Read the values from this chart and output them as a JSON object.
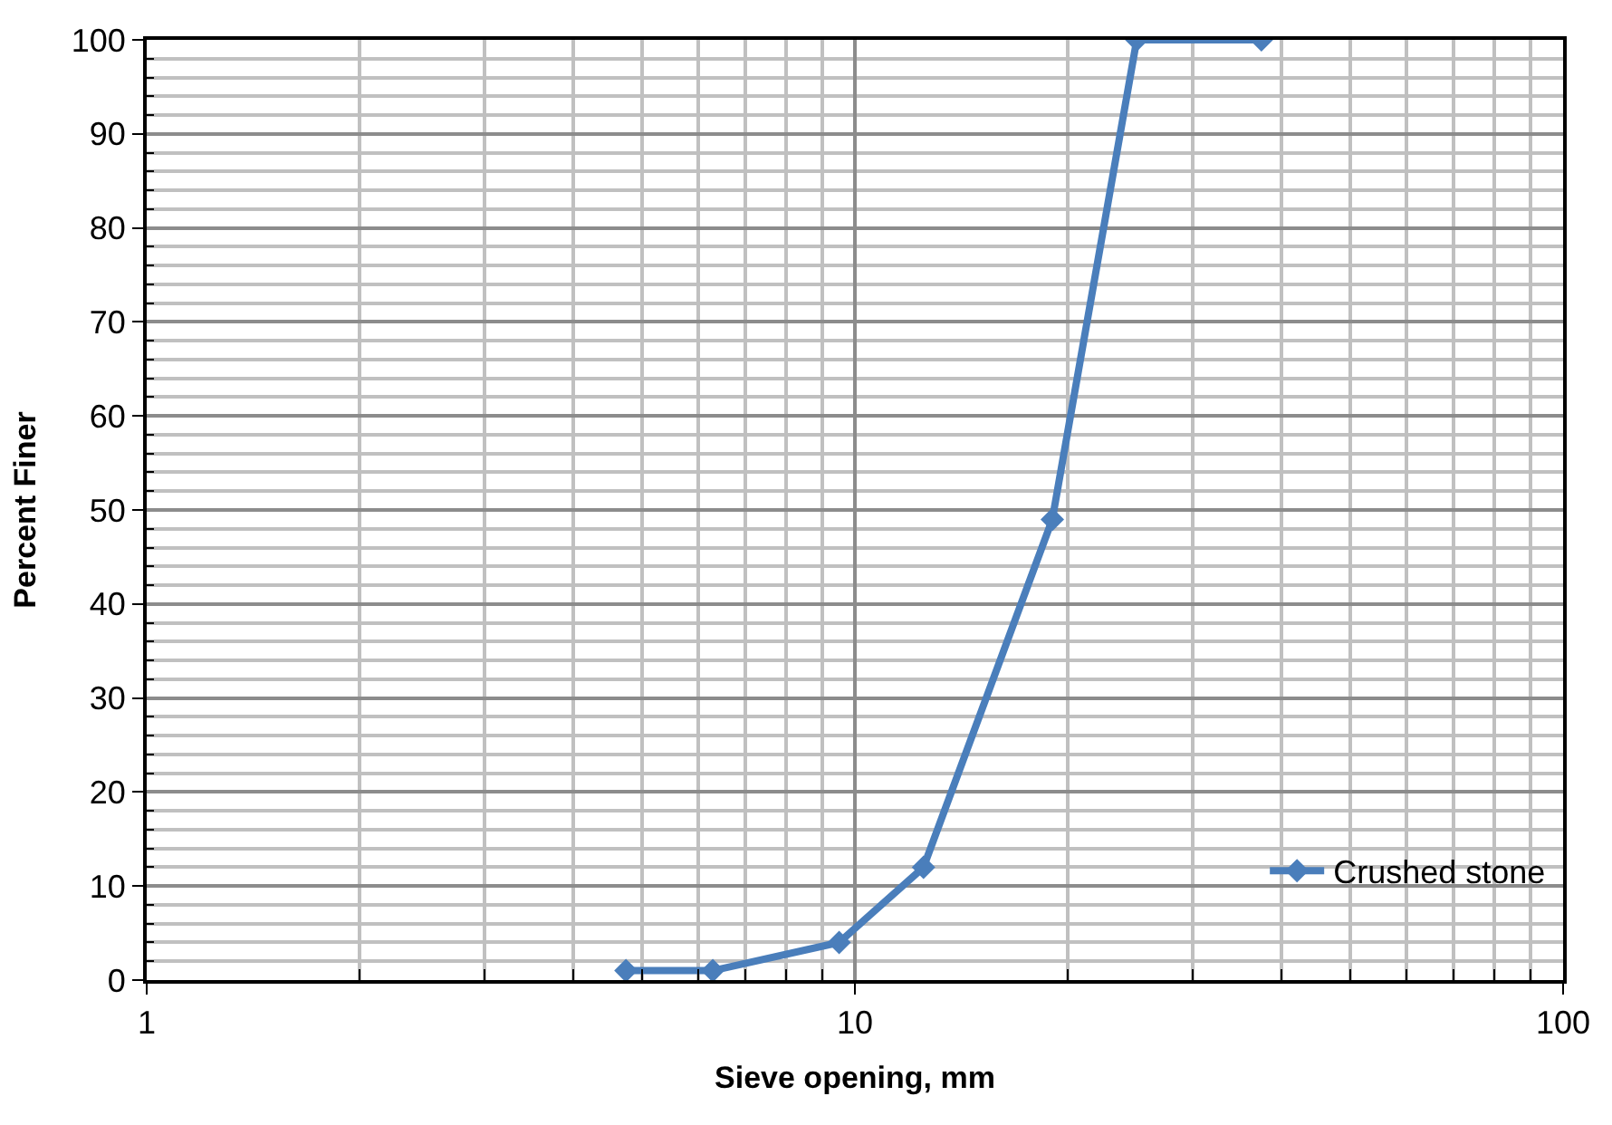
{
  "chart_data": {
    "type": "line",
    "xlabel": "Sieve opening, mm",
    "ylabel": "Percent Finer",
    "x": [
      4.75,
      6.3,
      9.5,
      12.5,
      19,
      25,
      37.5
    ],
    "series": [
      {
        "name": "Crushed stone",
        "color": "#4a7ebb",
        "values": [
          1,
          1,
          4,
          12,
          49,
          100,
          100
        ]
      }
    ],
    "xlim": [
      1,
      100
    ],
    "xticks": [
      1,
      10,
      100
    ],
    "ylim": [
      0,
      100
    ],
    "yticks": [
      0,
      10,
      20,
      30,
      40,
      50,
      60,
      70,
      80,
      90,
      100
    ],
    "log": "x",
    "grid": true,
    "legend": "bottom right",
    "marker": "diamond",
    "line_style": "solid"
  }
}
